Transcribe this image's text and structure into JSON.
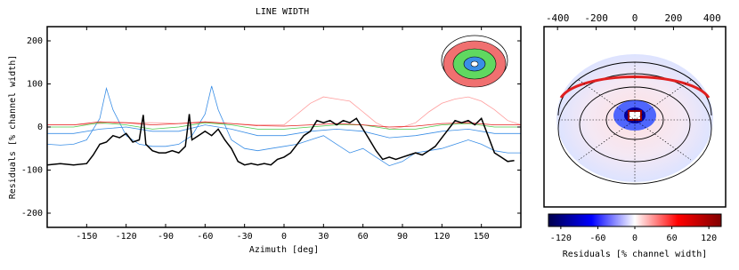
{
  "chart_data": [
    {
      "type": "line",
      "title": "LINE WIDTH",
      "xlabel": "Azimuth [deg]",
      "ylabel": "Residuals [% channel width]",
      "xlim": [
        -180,
        180
      ],
      "ylim": [
        -233,
        233
      ],
      "xticks": [
        -150,
        -120,
        -90,
        -60,
        -30,
        0,
        30,
        60,
        90,
        120,
        150
      ],
      "yticks": [
        -200,
        -100,
        0,
        100,
        200
      ],
      "series": [
        {
          "color": "#ff9d9d",
          "x": [
            -180,
            -160,
            -140,
            -120,
            -100,
            -80,
            -60,
            -40,
            -20,
            0,
            10,
            20,
            30,
            40,
            50,
            60,
            70,
            80,
            90,
            100,
            110,
            120,
            130,
            140,
            150,
            160,
            170,
            180
          ],
          "values": [
            5,
            5,
            8,
            10,
            10,
            8,
            10,
            8,
            5,
            5,
            30,
            55,
            70,
            65,
            60,
            35,
            10,
            -5,
            0,
            10,
            35,
            55,
            65,
            70,
            60,
            40,
            15,
            5
          ]
        },
        {
          "color": "#3a8ee6",
          "x": [
            -180,
            -170,
            -160,
            -150,
            -140,
            -135,
            -130,
            -120,
            -110,
            -100,
            -90,
            -80,
            -70,
            -60,
            -55,
            -50,
            -40,
            -30,
            -20,
            -10,
            0,
            10,
            20,
            30,
            40,
            50,
            60,
            70,
            80,
            90,
            100,
            110,
            120,
            130,
            140,
            150,
            160,
            170,
            180
          ],
          "values": [
            -40,
            -42,
            -40,
            -30,
            20,
            90,
            40,
            -20,
            -40,
            -45,
            -45,
            -40,
            -20,
            30,
            95,
            40,
            -30,
            -50,
            -55,
            -50,
            -45,
            -40,
            -30,
            -20,
            -40,
            -60,
            -50,
            -70,
            -90,
            -80,
            -60,
            -55,
            -50,
            -40,
            -30,
            -40,
            -55,
            -60,
            -60
          ]
        },
        {
          "color": "#3a8ee6",
          "x": [
            -180,
            -160,
            -140,
            -120,
            -100,
            -80,
            -60,
            -40,
            -20,
            0,
            20,
            40,
            60,
            80,
            100,
            120,
            140,
            160,
            180
          ],
          "values": [
            -15,
            -15,
            -5,
            0,
            -10,
            -10,
            5,
            -5,
            -20,
            -20,
            -10,
            -5,
            -10,
            -25,
            -20,
            -10,
            -5,
            -15,
            -15
          ]
        },
        {
          "color": "#4ec94e",
          "x": [
            -180,
            -160,
            -140,
            -120,
            -100,
            -80,
            -60,
            -40,
            -20,
            0,
            20,
            40,
            60,
            80,
            100,
            120,
            140,
            160,
            180
          ],
          "values": [
            0,
            0,
            10,
            5,
            -5,
            0,
            10,
            5,
            -5,
            -5,
            0,
            5,
            5,
            -5,
            -5,
            5,
            8,
            0,
            0
          ]
        },
        {
          "color": "#e52020",
          "x": [
            -180,
            -160,
            -140,
            -120,
            -100,
            -80,
            -60,
            -40,
            -20,
            0,
            20,
            40,
            60,
            80,
            100,
            120,
            140,
            160,
            180
          ],
          "values": [
            5,
            5,
            12,
            10,
            5,
            8,
            12,
            8,
            3,
            2,
            5,
            8,
            5,
            0,
            2,
            8,
            10,
            5,
            5
          ]
        },
        {
          "color": "#000000",
          "x": [
            -180,
            -170,
            -160,
            -150,
            -145,
            -140,
            -135,
            -130,
            -125,
            -120,
            -115,
            -110,
            -107,
            -105,
            -100,
            -95,
            -90,
            -85,
            -80,
            -75,
            -72,
            -70,
            -65,
            -60,
            -55,
            -50,
            -45,
            -40,
            -35,
            -30,
            -25,
            -20,
            -15,
            -10,
            -5,
            0,
            5,
            10,
            15,
            20,
            25,
            30,
            35,
            40,
            45,
            50,
            55,
            60,
            65,
            70,
            75,
            80,
            85,
            90,
            95,
            100,
            105,
            110,
            115,
            120,
            125,
            130,
            135,
            140,
            145,
            150,
            155,
            160,
            165,
            170,
            175
          ],
          "values": [
            -88,
            -85,
            -88,
            -85,
            -65,
            -40,
            -35,
            -20,
            -25,
            -15,
            -35,
            -30,
            28,
            -40,
            -55,
            -60,
            -60,
            -55,
            -60,
            -45,
            30,
            -30,
            -20,
            -10,
            -20,
            -5,
            -30,
            -50,
            -80,
            -88,
            -85,
            -88,
            -85,
            -88,
            -75,
            -70,
            -60,
            -40,
            -20,
            -10,
            15,
            10,
            15,
            5,
            15,
            10,
            20,
            -5,
            -30,
            -55,
            -75,
            -70,
            -75,
            -70,
            -65,
            -60,
            -65,
            -55,
            -45,
            -25,
            -5,
            15,
            10,
            15,
            5,
            20,
            -20,
            -60,
            -70,
            -80,
            -78
          ]
        }
      ]
    },
    {
      "type": "image",
      "xlim": [
        -470,
        470
      ],
      "xticks": [
        -400,
        -200,
        0,
        200,
        400
      ],
      "colorbar": {
        "lim": [
          -140,
          140
        ],
        "ticks": [
          -120,
          -60,
          0,
          60,
          120
        ],
        "label": "Residuals [% channel width]"
      }
    }
  ]
}
